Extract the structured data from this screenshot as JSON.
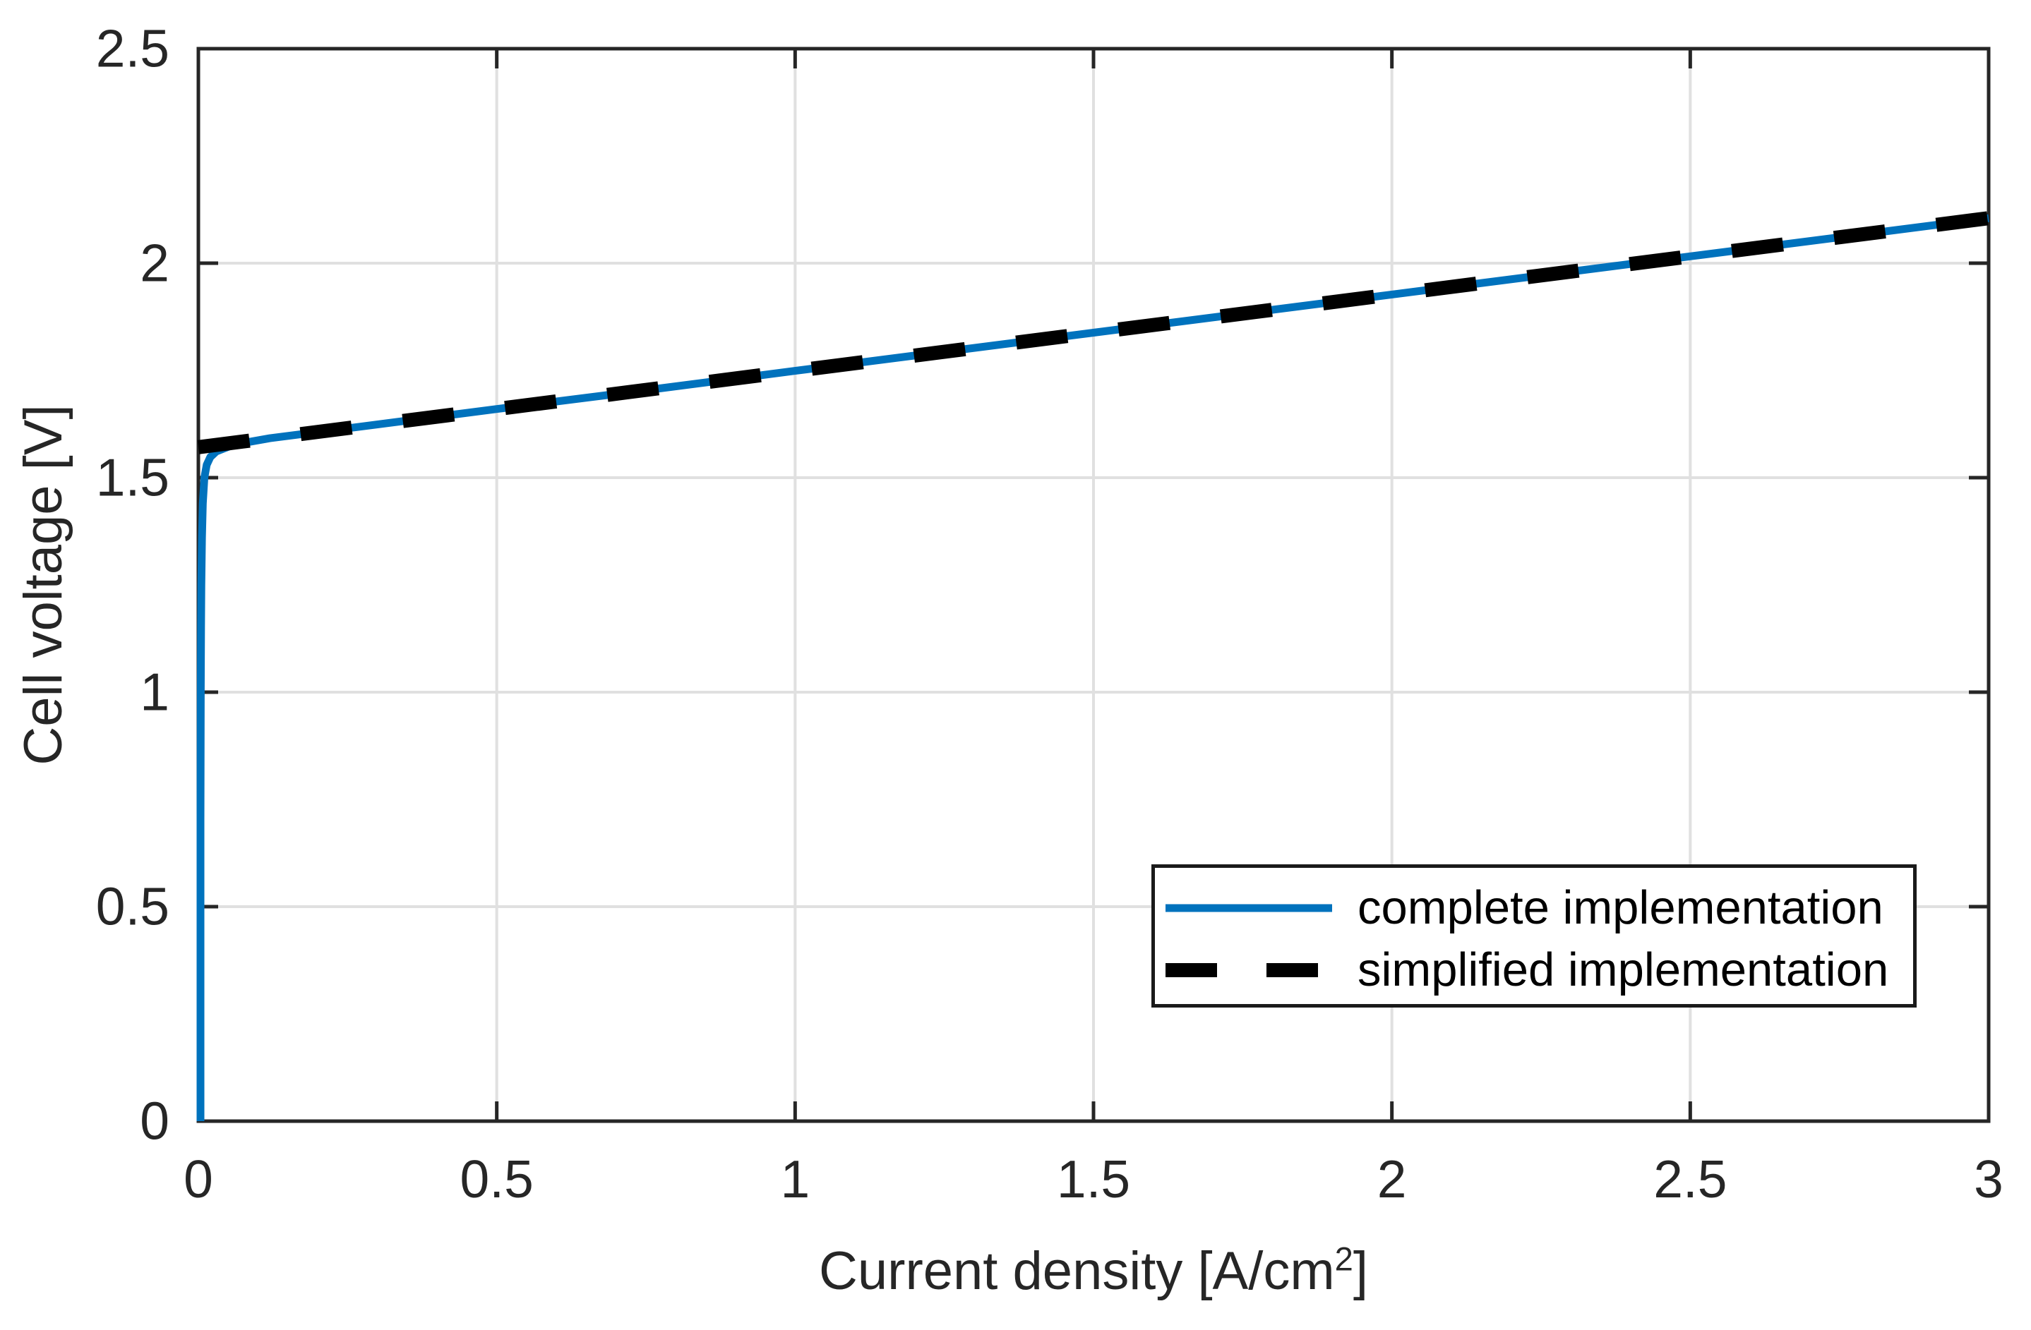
{
  "figure": {
    "background": "#ffffff"
  },
  "chart_data": {
    "type": "line",
    "title": "",
    "xlabel": "Current density [A/cm2]",
    "xlabel_parts": {
      "prefix": "Current density [A/cm",
      "sup": "2",
      "suffix": "]"
    },
    "ylabel": "Cell voltage [V]",
    "xlim": [
      0,
      3
    ],
    "ylim": [
      0,
      2.5
    ],
    "xticks": {
      "values": [
        0,
        0.5,
        1,
        1.5,
        2,
        2.5,
        3
      ],
      "labels": [
        "0",
        "0.5",
        "1",
        "1.5",
        "2",
        "2.5",
        "3"
      ]
    },
    "yticks": {
      "values": [
        0,
        0.5,
        1,
        1.5,
        2,
        2.5
      ],
      "labels": [
        "0",
        "0.5",
        "1",
        "1.5",
        "2",
        "2.5"
      ]
    },
    "grid": true,
    "grid_color": "#e0e0e0",
    "axis_color": "#262626",
    "legend": {
      "position": "inside-lower-right",
      "border_color": "#1a1a1a",
      "background": "#ffffff"
    },
    "series": [
      {
        "name": "complete implementation",
        "color": "#0072BD",
        "style": "solid",
        "line_width": 11,
        "points": [
          [
            0.0035,
            0.0
          ],
          [
            0.0035,
            0.7
          ],
          [
            0.004,
            1.0
          ],
          [
            0.0045,
            1.15
          ],
          [
            0.005,
            1.25
          ],
          [
            0.006,
            1.36
          ],
          [
            0.0075,
            1.44
          ],
          [
            0.01,
            1.5
          ],
          [
            0.014,
            1.53
          ],
          [
            0.02,
            1.548
          ],
          [
            0.03,
            1.561
          ],
          [
            0.05,
            1.572
          ],
          [
            0.08,
            1.582
          ],
          [
            0.12,
            1.592
          ],
          [
            0.3,
            1.624
          ],
          [
            0.5,
            1.66
          ],
          [
            0.75,
            1.704
          ],
          [
            1.0,
            1.749
          ],
          [
            1.5,
            1.838
          ],
          [
            2.0,
            1.927
          ],
          [
            2.5,
            2.016
          ],
          [
            3.0,
            2.105
          ]
        ]
      },
      {
        "name": "simplified implementation",
        "color": "#000000",
        "style": "dashed",
        "line_width": 20,
        "dash": [
          73,
          73
        ],
        "legend_dash": [
          73,
          70
        ],
        "points": [
          [
            0,
            1.571
          ],
          [
            3,
            2.105
          ]
        ]
      }
    ]
  }
}
